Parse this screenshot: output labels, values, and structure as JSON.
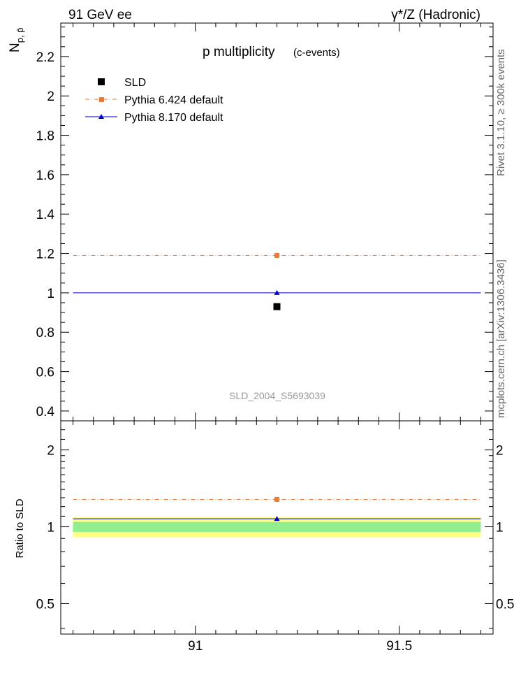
{
  "header": {
    "left": "91 GeV ee",
    "right": "γ*/Z (Hadronic)"
  },
  "side_labels": {
    "rivet": "Rivet 3.1.10, ≥ 300k events",
    "mcplots": "mcplots.cern.ch [arXiv:1306.3436]"
  },
  "chart_data": [
    {
      "type": "scatter",
      "panel": "main",
      "title": "p multiplicity",
      "subtitle": "(c-events)",
      "watermark": "SLD_2004_S5693039",
      "ylabel_main": "N",
      "ylabel_sub": "p, p̄",
      "xlabel": "",
      "xlim": [
        90.67,
        91.73
      ],
      "ylim": [
        0.35,
        2.37
      ],
      "yticks": [
        0.4,
        0.6,
        0.8,
        1,
        1.2,
        1.4,
        1.6,
        1.8,
        2,
        2.2
      ],
      "ytick_labels": [
        "0.4",
        "0.6",
        "0.8",
        "1",
        "1.2",
        "1.4",
        "1.6",
        "1.8",
        "2",
        "2.2"
      ],
      "legend_position": "top-left",
      "series": [
        {
          "name": "SLD",
          "kind": "data",
          "color": "#000000",
          "marker": "square",
          "x": [
            91.2
          ],
          "y": [
            0.93
          ]
        },
        {
          "name": "Pythia 6.424 default",
          "kind": "mc",
          "color": "#ee7a2f",
          "marker": "square",
          "line": "dash-dot",
          "x": [
            91.2
          ],
          "y": [
            1.19
          ],
          "xrange": [
            90.7,
            91.7
          ]
        },
        {
          "name": "Pythia 8.170 default",
          "kind": "mc",
          "color": "#0000c8",
          "marker": "triangle",
          "line": "solid",
          "x": [
            91.2
          ],
          "y": [
            1.0
          ],
          "xrange": [
            90.7,
            91.7
          ]
        }
      ]
    },
    {
      "type": "scatter",
      "panel": "ratio",
      "ylabel": "Ratio to SLD",
      "xlim": [
        90.67,
        91.73
      ],
      "ylim": [
        0.38,
        2.6
      ],
      "yscale": "log",
      "yticks": [
        0.5,
        1,
        2
      ],
      "ytick_labels": [
        "0.5",
        "1",
        "2"
      ],
      "xticks": [
        91,
        91.5
      ],
      "xtick_labels": [
        "91",
        "91.5"
      ],
      "bands": [
        {
          "name": "total uncertainty",
          "color": "#ffff80",
          "low": 0.91,
          "high": 1.09,
          "xrange": [
            90.7,
            91.7
          ]
        },
        {
          "name": "stat uncertainty",
          "color": "#90ee90",
          "low": 0.955,
          "high": 1.045,
          "xrange": [
            90.7,
            91.7
          ]
        }
      ],
      "series": [
        {
          "name": "Pythia 6.424 default",
          "color": "#ee7a2f",
          "marker": "square",
          "line": "dash-dot",
          "x": [
            91.2
          ],
          "y": [
            1.28
          ],
          "xrange": [
            90.7,
            91.7
          ]
        },
        {
          "name": "Pythia 8.170 default",
          "color": "#0000c8",
          "marker": "triangle",
          "line": "solid",
          "x": [
            91.2
          ],
          "y": [
            1.075
          ],
          "xrange": [
            90.7,
            91.7
          ]
        }
      ]
    }
  ]
}
